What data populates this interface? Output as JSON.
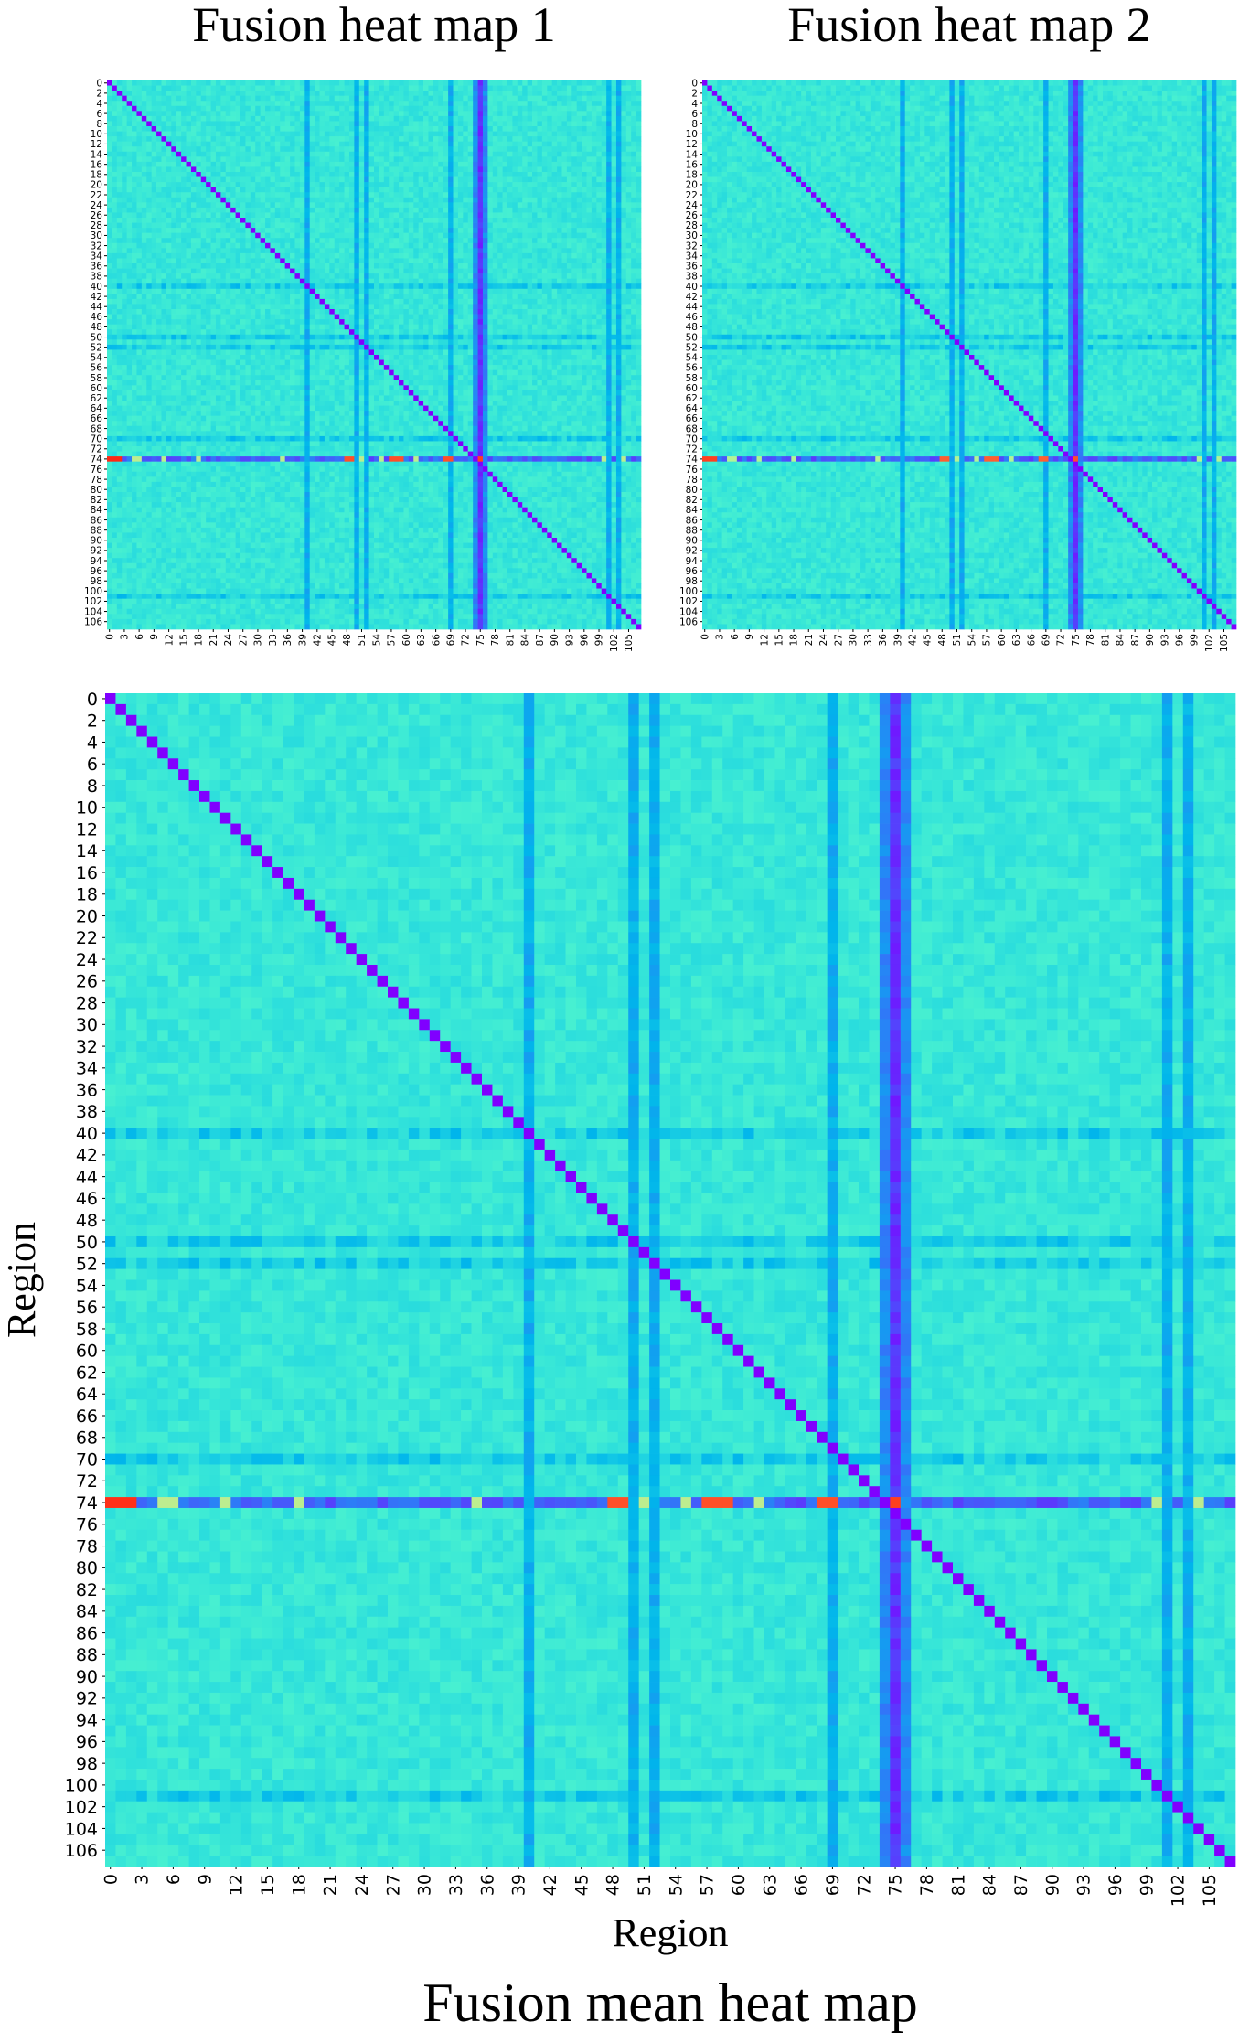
{
  "chart_data": [
    {
      "type": "heatmap",
      "title": "Fusion heat map 1",
      "xlabel": "",
      "ylabel": "",
      "n_regions": 108,
      "x_ticks": [
        0,
        3,
        6,
        9,
        12,
        15,
        18,
        21,
        24,
        27,
        30,
        33,
        36,
        39,
        42,
        45,
        48,
        51,
        54,
        57,
        60,
        63,
        66,
        69,
        72,
        75,
        78,
        81,
        84,
        87,
        90,
        93,
        96,
        99,
        102,
        105
      ],
      "y_ticks": [
        0,
        2,
        4,
        6,
        8,
        10,
        12,
        14,
        16,
        18,
        20,
        22,
        24,
        26,
        28,
        30,
        32,
        34,
        36,
        38,
        40,
        42,
        44,
        46,
        48,
        50,
        52,
        54,
        56,
        58,
        60,
        62,
        64,
        66,
        68,
        70,
        72,
        74,
        76,
        78,
        80,
        82,
        84,
        86,
        88,
        90,
        92,
        94,
        96,
        98,
        100,
        102,
        104,
        106
      ],
      "colormap": "rainbow",
      "value_range": [
        0,
        1
      ],
      "baseline_value": 0.36,
      "diagonal_value": 0.0,
      "colorbar": false,
      "grid": false,
      "bands": [
        {
          "axis": "col",
          "indices": [
            75
          ],
          "value": 0.06
        },
        {
          "axis": "col",
          "indices": [
            74,
            76
          ],
          "value": 0.18
        },
        {
          "axis": "col",
          "indices": [
            40,
            50,
            52,
            69,
            101,
            103
          ],
          "value": 0.24
        },
        {
          "axis": "row",
          "indices": [
            74
          ],
          "value": 0.12
        },
        {
          "axis": "row",
          "indices": [
            40,
            50,
            52,
            70,
            101
          ],
          "value": 0.3
        }
      ],
      "hotspots": [
        {
          "row": 74,
          "cols": [
            0,
            1,
            2
          ],
          "value": 0.95
        },
        {
          "row": 74,
          "cols": [
            48,
            49,
            57,
            58,
            59,
            68,
            69
          ],
          "value": 0.9
        },
        {
          "row": 74,
          "cols": [
            5,
            6,
            11,
            18,
            35,
            51,
            55,
            62,
            100,
            104
          ],
          "value": 0.62
        },
        {
          "row": 74,
          "cols": [
            75
          ],
          "value": 0.92
        }
      ]
    },
    {
      "type": "heatmap",
      "title": "Fusion heat map 2",
      "xlabel": "",
      "ylabel": "",
      "n_regions": 108,
      "x_ticks": [
        0,
        3,
        6,
        9,
        12,
        15,
        18,
        21,
        24,
        27,
        30,
        33,
        36,
        39,
        42,
        45,
        48,
        51,
        54,
        57,
        60,
        63,
        66,
        69,
        72,
        75,
        78,
        81,
        84,
        87,
        90,
        93,
        96,
        99,
        102,
        105
      ],
      "y_ticks": [
        0,
        2,
        4,
        6,
        8,
        10,
        12,
        14,
        16,
        18,
        20,
        22,
        24,
        26,
        28,
        30,
        32,
        34,
        36,
        38,
        40,
        42,
        44,
        46,
        48,
        50,
        52,
        54,
        56,
        58,
        60,
        62,
        64,
        66,
        68,
        70,
        72,
        74,
        76,
        78,
        80,
        82,
        84,
        86,
        88,
        90,
        92,
        94,
        96,
        98,
        100,
        102,
        104,
        106
      ],
      "colormap": "rainbow",
      "value_range": [
        0,
        1
      ],
      "baseline_value": 0.36,
      "diagonal_value": 0.0,
      "colorbar": false,
      "grid": false,
      "bands": [
        {
          "axis": "col",
          "indices": [
            75
          ],
          "value": 0.06
        },
        {
          "axis": "col",
          "indices": [
            74,
            76
          ],
          "value": 0.18
        },
        {
          "axis": "col",
          "indices": [
            40,
            50,
            52,
            69,
            101,
            103
          ],
          "value": 0.24
        },
        {
          "axis": "row",
          "indices": [
            74
          ],
          "value": 0.12
        },
        {
          "axis": "row",
          "indices": [
            40,
            50,
            52,
            70,
            101
          ],
          "value": 0.3
        }
      ],
      "hotspots": [
        {
          "row": 74,
          "cols": [
            0,
            1,
            2
          ],
          "value": 0.92
        },
        {
          "row": 74,
          "cols": [
            48,
            49,
            57,
            58,
            59,
            68,
            69
          ],
          "value": 0.88
        },
        {
          "row": 74,
          "cols": [
            5,
            6,
            11,
            18,
            35,
            51,
            55,
            62,
            100,
            104
          ],
          "value": 0.6
        },
        {
          "row": 74,
          "cols": [
            75
          ],
          "value": 0.9
        }
      ]
    },
    {
      "type": "heatmap",
      "title": "Fusion mean heat map",
      "xlabel": "Region",
      "ylabel": "Region",
      "n_regions": 108,
      "x_ticks": [
        0,
        3,
        6,
        9,
        12,
        15,
        18,
        21,
        24,
        27,
        30,
        33,
        36,
        39,
        42,
        45,
        48,
        51,
        54,
        57,
        60,
        63,
        66,
        69,
        72,
        75,
        78,
        81,
        84,
        87,
        90,
        93,
        96,
        99,
        102,
        105
      ],
      "y_ticks": [
        0,
        2,
        4,
        6,
        8,
        10,
        12,
        14,
        16,
        18,
        20,
        22,
        24,
        26,
        28,
        30,
        32,
        34,
        36,
        38,
        40,
        42,
        44,
        46,
        48,
        50,
        52,
        54,
        56,
        58,
        60,
        62,
        64,
        66,
        68,
        70,
        72,
        74,
        76,
        78,
        80,
        82,
        84,
        86,
        88,
        90,
        92,
        94,
        96,
        98,
        100,
        102,
        104,
        106
      ],
      "colormap": "rainbow",
      "value_range": [
        0,
        1
      ],
      "baseline_value": 0.36,
      "diagonal_value": 0.0,
      "colorbar": false,
      "grid": false,
      "bands": [
        {
          "axis": "col",
          "indices": [
            75
          ],
          "value": 0.06
        },
        {
          "axis": "col",
          "indices": [
            74,
            76
          ],
          "value": 0.18
        },
        {
          "axis": "col",
          "indices": [
            40,
            50,
            52,
            69,
            101,
            103
          ],
          "value": 0.24
        },
        {
          "axis": "row",
          "indices": [
            74
          ],
          "value": 0.12
        },
        {
          "axis": "row",
          "indices": [
            40,
            50,
            52,
            70,
            101
          ],
          "value": 0.3
        }
      ],
      "hotspots": [
        {
          "row": 74,
          "cols": [
            0,
            1,
            2
          ],
          "value": 0.94
        },
        {
          "row": 74,
          "cols": [
            48,
            49,
            57,
            58,
            59,
            68,
            69
          ],
          "value": 0.9
        },
        {
          "row": 74,
          "cols": [
            5,
            6,
            11,
            18,
            35,
            51,
            55,
            62,
            100,
            104
          ],
          "value": 0.62
        },
        {
          "row": 74,
          "cols": [
            75
          ],
          "value": 0.92
        }
      ]
    }
  ]
}
